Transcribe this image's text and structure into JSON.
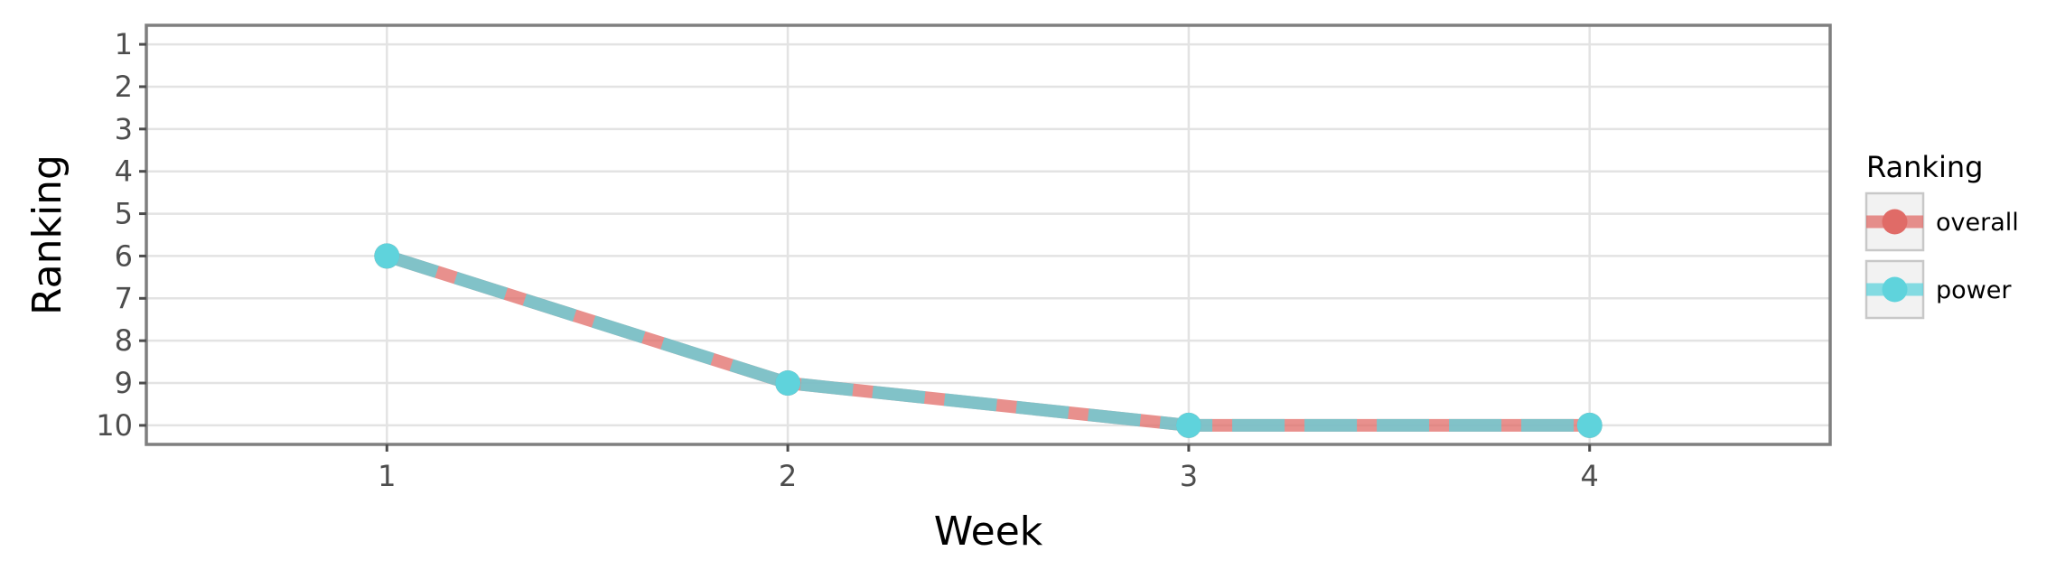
{
  "chart_data": {
    "type": "line",
    "xlabel": "Week",
    "ylabel": "Ranking",
    "x": [
      1,
      2,
      3,
      4
    ],
    "x_ticks": [
      "1",
      "2",
      "3",
      "4"
    ],
    "xlim": [
      0.4,
      4.6
    ],
    "y_ticks": [
      "1",
      "2",
      "3",
      "4",
      "5",
      "6",
      "7",
      "8",
      "9",
      "10"
    ],
    "ylim": [
      10.45,
      0.55
    ],
    "y_reversed": true,
    "grid": true,
    "legend": {
      "title": "Ranking",
      "position": "right"
    },
    "series": [
      {
        "name": "overall",
        "values": [
          6,
          9,
          10,
          10
        ],
        "color": "#e06b67",
        "style": "solid"
      },
      {
        "name": "power",
        "values": [
          6,
          9,
          10,
          10
        ],
        "color": "#5fd3dc",
        "style": "dashed"
      }
    ]
  }
}
